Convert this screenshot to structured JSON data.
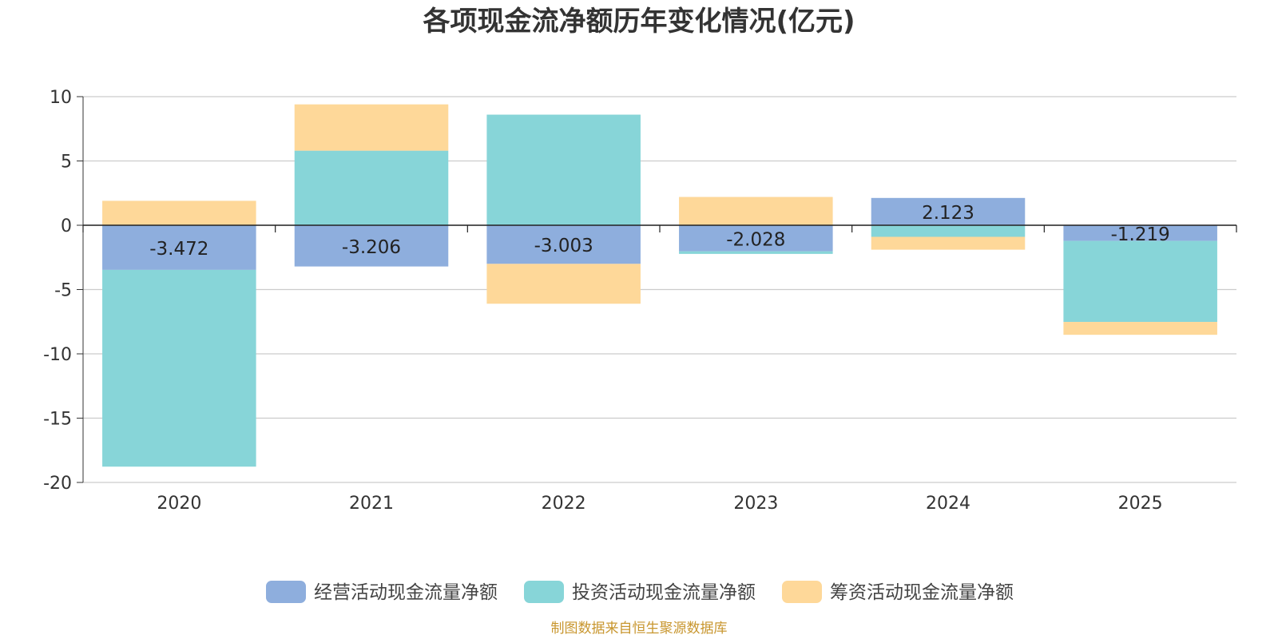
{
  "chart_data": {
    "type": "bar",
    "stacked": true,
    "title": "各项现金流净额历年变化情况(亿元)",
    "categories": [
      "2020",
      "2021",
      "2022",
      "2023",
      "2024",
      "2025"
    ],
    "ylim": [
      -20,
      10
    ],
    "yticks": [
      10,
      5,
      0,
      -5,
      -10,
      -15,
      -20
    ],
    "grid": true,
    "legend_position": "bottom",
    "series": [
      {
        "name": "经营活动现金流量净额",
        "color": "#8eaedd",
        "values": [
          -3.472,
          -3.206,
          -3.003,
          -2.028,
          2.123,
          -1.219
        ],
        "labels": [
          "-3.472",
          "-3.206",
          "-3.003",
          "-2.028",
          "2.123",
          "-1.219"
        ]
      },
      {
        "name": "投资活动现金流量净额",
        "color": "#87d5d8",
        "values": [
          -15.3,
          5.8,
          8.6,
          -0.2,
          -0.9,
          -6.3
        ]
      },
      {
        "name": "筹资活动现金流量净额",
        "color": "#fed899",
        "values": [
          1.9,
          3.6,
          -3.1,
          2.2,
          -1.0,
          -1.0
        ]
      }
    ],
    "source": "制图数据来自恒生聚源数据库"
  }
}
